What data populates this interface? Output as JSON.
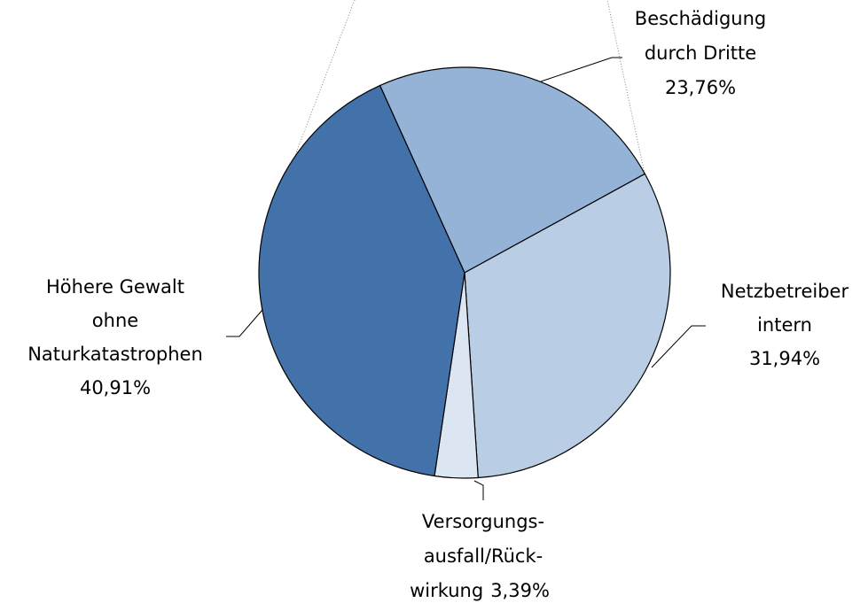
{
  "chart_data": {
    "type": "pie",
    "categories": [
      [
        "Beschädigung",
        "durch Dritte"
      ],
      [
        "Netzbetreiber",
        "intern"
      ],
      [
        "Versorgungs-",
        "ausfall/Rück-",
        "wirkung"
      ],
      [
        "Höhere Gewalt",
        "ohne",
        "Naturkatastrophen"
      ]
    ],
    "values": [
      23.76,
      31.94,
      3.39,
      40.91
    ],
    "value_labels": [
      "23,76%",
      "31,94%",
      "3,39%",
      "40,91%"
    ],
    "colors": [
      "#95b3d7",
      "#b9cde5",
      "#dce6f2",
      "#4372aa"
    ]
  }
}
